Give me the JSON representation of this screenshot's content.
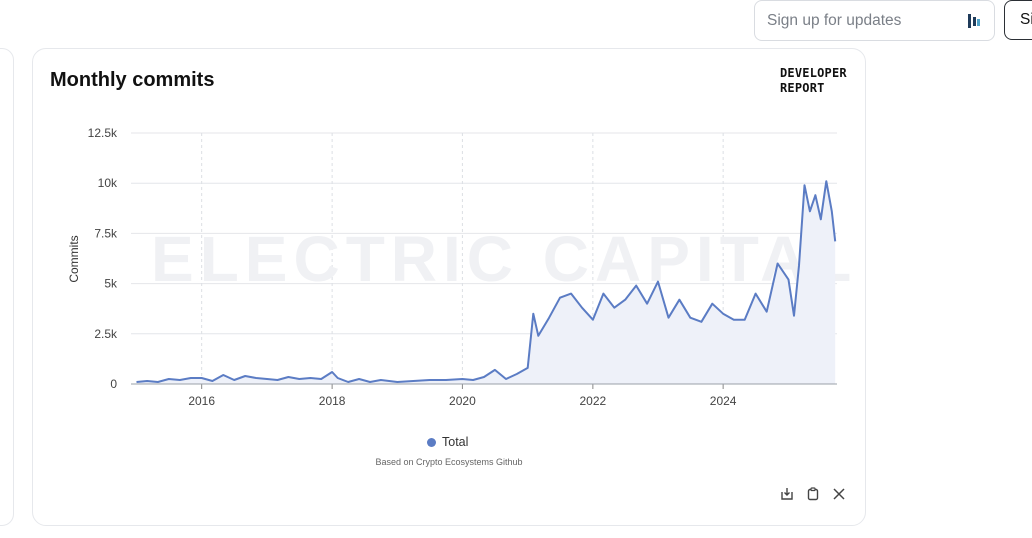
{
  "header": {
    "signup_placeholder": "Sign up for updates",
    "sign_button_label": "Si"
  },
  "card": {
    "title": "Monthly commits",
    "brand_line1": "DEVELOPER",
    "brand_line2": "REPORT",
    "watermark": "ELECTRIC CAPITAL",
    "source_note": "Based on Crypto Ecosystems Github",
    "actions": [
      "download-icon",
      "copy-icon",
      "x-share-icon"
    ]
  },
  "chart_data": {
    "type": "area",
    "title": "Monthly commits",
    "xlabel": "",
    "ylabel": "Commits",
    "ylim": [
      0,
      12500
    ],
    "xlim": [
      "2014-12-01",
      "2025-09-30"
    ],
    "y_ticks": [
      0,
      2500,
      5000,
      7500,
      10000,
      12500
    ],
    "y_tick_labels": [
      "0",
      "2.5k",
      "5k",
      "7.5k",
      "10k",
      "12.5k"
    ],
    "x_ticks": [
      "2016-01-01",
      "2018-01-01",
      "2020-01-01",
      "2022-01-01",
      "2024-01-01"
    ],
    "x_tick_labels": [
      "2016",
      "2018",
      "2020",
      "2022",
      "2024"
    ],
    "grid": true,
    "legend_position": "bottom",
    "color": "#5b7cc4",
    "fill_color": "#eef1f9",
    "series": [
      {
        "name": "Total",
        "points": [
          [
            "2015-01-01",
            100
          ],
          [
            "2015-03-01",
            150
          ],
          [
            "2015-05-01",
            100
          ],
          [
            "2015-07-01",
            250
          ],
          [
            "2015-09-01",
            200
          ],
          [
            "2015-11-01",
            300
          ],
          [
            "2016-01-01",
            300
          ],
          [
            "2016-03-01",
            150
          ],
          [
            "2016-05-01",
            450
          ],
          [
            "2016-07-01",
            200
          ],
          [
            "2016-09-01",
            400
          ],
          [
            "2016-11-01",
            300
          ],
          [
            "2017-01-01",
            250
          ],
          [
            "2017-03-01",
            200
          ],
          [
            "2017-05-01",
            350
          ],
          [
            "2017-07-01",
            250
          ],
          [
            "2017-09-01",
            300
          ],
          [
            "2017-11-01",
            250
          ],
          [
            "2018-01-01",
            600
          ],
          [
            "2018-02-01",
            300
          ],
          [
            "2018-04-01",
            100
          ],
          [
            "2018-06-01",
            250
          ],
          [
            "2018-08-01",
            100
          ],
          [
            "2018-10-01",
            200
          ],
          [
            "2019-01-01",
            100
          ],
          [
            "2019-04-01",
            150
          ],
          [
            "2019-07-01",
            200
          ],
          [
            "2019-10-01",
            200
          ],
          [
            "2020-01-01",
            250
          ],
          [
            "2020-03-01",
            200
          ],
          [
            "2020-05-01",
            350
          ],
          [
            "2020-07-01",
            700
          ],
          [
            "2020-09-01",
            250
          ],
          [
            "2020-11-01",
            500
          ],
          [
            "2021-01-01",
            800
          ],
          [
            "2021-02-01",
            3500
          ],
          [
            "2021-03-01",
            2400
          ],
          [
            "2021-05-01",
            3300
          ],
          [
            "2021-07-01",
            4300
          ],
          [
            "2021-09-01",
            4500
          ],
          [
            "2021-11-01",
            3800
          ],
          [
            "2022-01-01",
            3200
          ],
          [
            "2022-03-01",
            4500
          ],
          [
            "2022-05-01",
            3800
          ],
          [
            "2022-07-01",
            4200
          ],
          [
            "2022-09-01",
            4900
          ],
          [
            "2022-11-01",
            4000
          ],
          [
            "2023-01-01",
            5100
          ],
          [
            "2023-03-01",
            3300
          ],
          [
            "2023-05-01",
            4200
          ],
          [
            "2023-07-01",
            3300
          ],
          [
            "2023-09-01",
            3100
          ],
          [
            "2023-11-01",
            4000
          ],
          [
            "2024-01-01",
            3500
          ],
          [
            "2024-03-01",
            3200
          ],
          [
            "2024-05-01",
            3200
          ],
          [
            "2024-07-01",
            4500
          ],
          [
            "2024-09-01",
            3600
          ],
          [
            "2024-11-01",
            6000
          ],
          [
            "2025-01-01",
            5200
          ],
          [
            "2025-02-01",
            3400
          ],
          [
            "2025-03-01",
            5900
          ],
          [
            "2025-04-01",
            9900
          ],
          [
            "2025-05-01",
            8600
          ],
          [
            "2025-06-01",
            9400
          ],
          [
            "2025-07-01",
            8200
          ],
          [
            "2025-08-01",
            10100
          ],
          [
            "2025-09-01",
            8600
          ],
          [
            "2025-09-20",
            7100
          ]
        ]
      }
    ]
  }
}
